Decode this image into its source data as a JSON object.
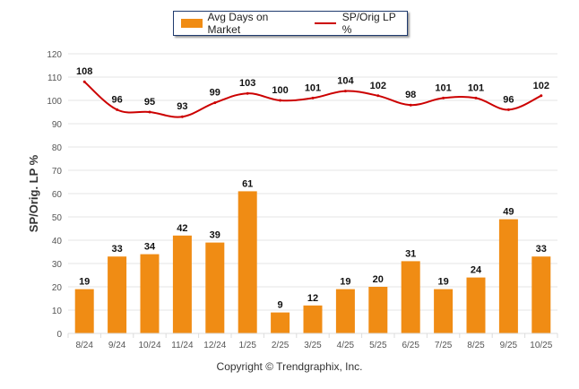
{
  "chart_data": {
    "type": "bar",
    "title": "",
    "xlabel": "",
    "ylabel": "SP/Orig. LP %",
    "ylim": [
      0,
      120
    ],
    "yticks": [
      0,
      10,
      20,
      30,
      40,
      50,
      60,
      70,
      80,
      90,
      100,
      110,
      120
    ],
    "grid": true,
    "legend_position": "top-center",
    "categories": [
      "8/24",
      "9/24",
      "10/24",
      "11/24",
      "12/24",
      "1/25",
      "2/25",
      "3/25",
      "4/25",
      "5/25",
      "6/25",
      "7/25",
      "8/25",
      "9/25",
      "10/25"
    ],
    "series": [
      {
        "name": "Avg Days on Market",
        "type": "bar",
        "color": "#f08c14",
        "values": [
          19,
          33,
          34,
          42,
          39,
          61,
          9,
          12,
          19,
          20,
          31,
          19,
          24,
          49,
          33
        ]
      },
      {
        "name": "SP/Orig LP %",
        "type": "line",
        "color": "#cc0000",
        "values": [
          108,
          96,
          95,
          93,
          99,
          103,
          100,
          101,
          104,
          102,
          98,
          101,
          101,
          96,
          102
        ]
      }
    ]
  },
  "legend": {
    "items": [
      {
        "label": "Avg Days on Market",
        "color": "#f08c14",
        "kind": "bar"
      },
      {
        "label": "SP/Orig LP %",
        "color": "#cc0000",
        "kind": "line"
      }
    ]
  },
  "footer": {
    "copyright": "Copyright © Trendgraphix, Inc."
  }
}
